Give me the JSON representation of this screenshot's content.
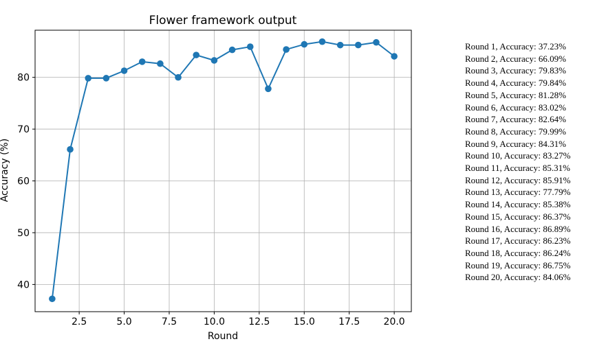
{
  "chart_data": {
    "type": "line",
    "title": "Flower framework output",
    "xlabel": "Round",
    "ylabel": "Accuracy (%)",
    "xlim": [
      0.05,
      20.95
    ],
    "ylim": [
      34.75,
      89.1
    ],
    "xticks": [
      2.5,
      5.0,
      7.5,
      10.0,
      12.5,
      15.0,
      17.5,
      20.0
    ],
    "xtick_labels": [
      "2.5",
      "5.0",
      "7.5",
      "10.0",
      "12.5",
      "15.0",
      "17.5",
      "20.0"
    ],
    "yticks": [
      40,
      50,
      60,
      70,
      80
    ],
    "ytick_labels": [
      "40",
      "50",
      "60",
      "70",
      "80"
    ],
    "grid": true,
    "color": "#1f77b4",
    "marker": "circle",
    "series": [
      {
        "x": [
          1,
          2,
          3,
          4,
          5,
          6,
          7,
          8,
          9,
          10,
          11,
          12,
          13,
          14,
          15,
          16,
          17,
          18,
          19,
          20
        ],
        "values": [
          37.23,
          66.09,
          79.83,
          79.84,
          81.28,
          83.02,
          82.64,
          79.99,
          84.31,
          83.27,
          85.31,
          85.91,
          77.79,
          85.38,
          86.37,
          86.89,
          86.23,
          86.24,
          86.75,
          84.06
        ]
      }
    ]
  },
  "results": [
    "Round 1, Accuracy: 37.23%",
    "Round 2, Accuracy: 66.09%",
    "Round 3, Accuracy: 79.83%",
    "Round 4, Accuracy: 79.84%",
    "Round 5, Accuracy: 81.28%",
    "Round 6, Accuracy: 83.02%",
    "Round 7, Accuracy: 82.64%",
    "Round 8, Accuracy: 79.99%",
    "Round 9, Accuracy: 84.31%",
    "Round 10, Accuracy: 83.27%",
    "Round 11, Accuracy: 85.31%",
    "Round 12, Accuracy: 85.91%",
    "Round 13, Accuracy: 77.79%",
    "Round 14, Accuracy: 85.38%",
    "Round 15, Accuracy: 86.37%",
    "Round 16, Accuracy: 86.89%",
    "Round 17, Accuracy: 86.23%",
    "Round 18, Accuracy: 86.24%",
    "Round 19, Accuracy: 86.75%",
    "Round 20, Accuracy: 84.06%"
  ]
}
